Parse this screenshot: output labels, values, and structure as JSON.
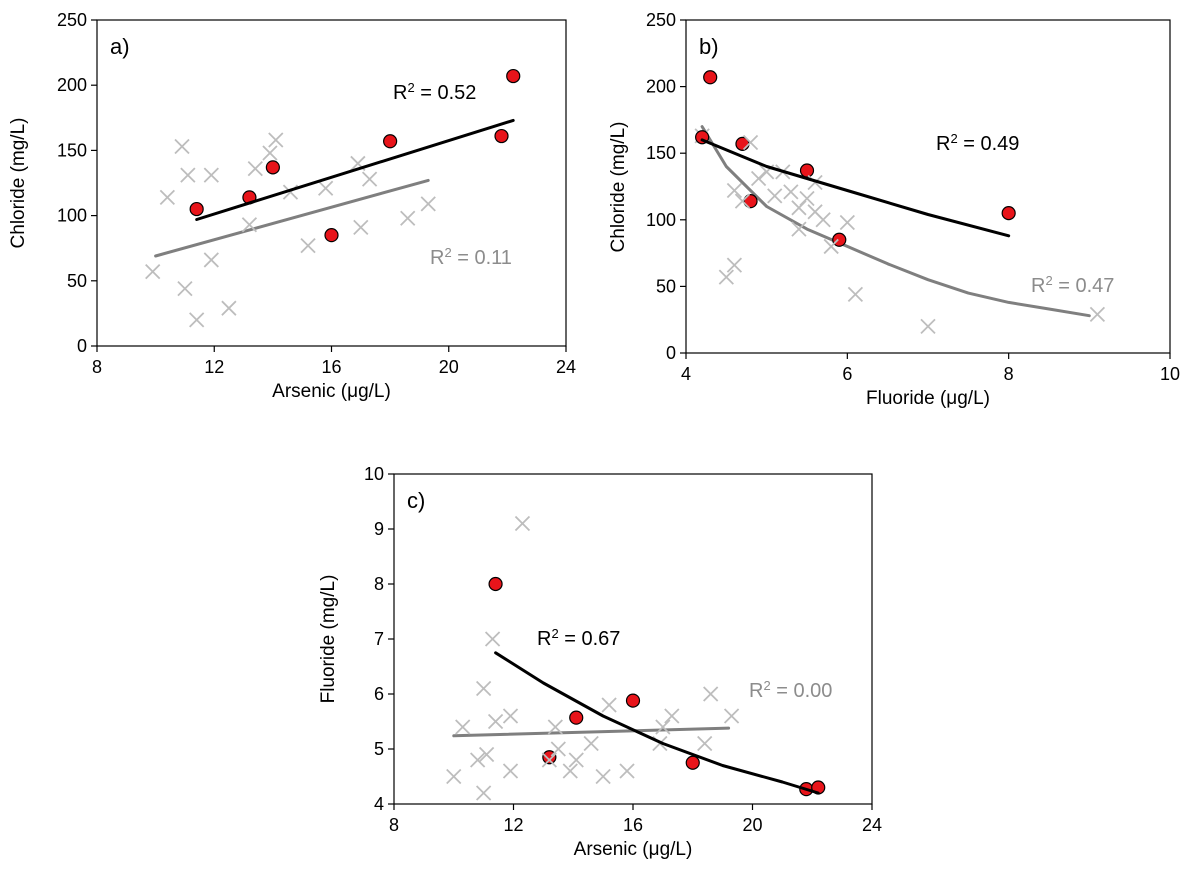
{
  "chart_data": [
    {
      "type": "scatter",
      "panel": "a)",
      "xlabel": "Arsenic (μg/L)",
      "ylabel": "Chloride (mg/L)",
      "xlim": [
        8,
        24
      ],
      "ylim": [
        0,
        250
      ],
      "xticks": [
        "8",
        "12",
        "16",
        "20",
        "24"
      ],
      "yticks": [
        "0",
        "50",
        "100",
        "150",
        "200",
        "250"
      ],
      "series": [
        {
          "marker": "cross",
          "color": "#bdbdbd",
          "points": [
            [
              9.9,
              57
            ],
            [
              10.4,
              114
            ],
            [
              10.9,
              153
            ],
            [
              11.0,
              44
            ],
            [
              11.1,
              131
            ],
            [
              11.4,
              20
            ],
            [
              11.9,
              131
            ],
            [
              11.9,
              66
            ],
            [
              12.5,
              29
            ],
            [
              13.2,
              93
            ],
            [
              13.4,
              136
            ],
            [
              13.9,
              148
            ],
            [
              14.1,
              158
            ],
            [
              14.6,
              118
            ],
            [
              15.2,
              77
            ],
            [
              15.8,
              121
            ],
            [
              16.9,
              140
            ],
            [
              17.0,
              91
            ],
            [
              17.3,
              128
            ],
            [
              18.6,
              98
            ],
            [
              19.3,
              109
            ]
          ],
          "fit": [
            [
              10.0,
              69
            ],
            [
              19.3,
              127
            ]
          ],
          "r2_label": "R",
          "r2_value": " = 0.11"
        },
        {
          "marker": "circle",
          "color": "#e8141a",
          "points": [
            [
              11.4,
              105
            ],
            [
              13.2,
              114
            ],
            [
              14.0,
              137
            ],
            [
              16.0,
              85
            ],
            [
              18.0,
              157
            ],
            [
              21.8,
              161
            ],
            [
              22.2,
              207
            ]
          ],
          "fit": [
            [
              11.4,
              97
            ],
            [
              22.2,
              173
            ]
          ],
          "r2_label": "R",
          "r2_value": " = 0.52"
        }
      ]
    },
    {
      "type": "scatter",
      "panel": "b)",
      "xlabel": "Fluoride (μg/L)",
      "ylabel": "Chloride (mg/L)",
      "xlim": [
        4,
        10
      ],
      "ylim": [
        0,
        250
      ],
      "xticks": [
        "4",
        "6",
        "8",
        "10"
      ],
      "yticks": [
        "0",
        "50",
        "100",
        "150",
        "200",
        "250"
      ],
      "series": [
        {
          "marker": "cross",
          "color": "#bdbdbd",
          "points": [
            [
              4.2,
              163
            ],
            [
              4.5,
              57
            ],
            [
              4.6,
              66
            ],
            [
              4.6,
              122
            ],
            [
              4.7,
              114
            ],
            [
              4.8,
              158
            ],
            [
              4.9,
              131
            ],
            [
              5.0,
              136
            ],
            [
              5.1,
              118
            ],
            [
              5.2,
              136
            ],
            [
              5.3,
              121
            ],
            [
              5.4,
              93
            ],
            [
              5.4,
              109
            ],
            [
              5.5,
              116
            ],
            [
              5.6,
              128
            ],
            [
              5.6,
              106
            ],
            [
              5.7,
              100
            ],
            [
              5.8,
              80
            ],
            [
              6.0,
              98
            ],
            [
              6.1,
              44
            ],
            [
              7.0,
              20
            ],
            [
              9.1,
              29
            ]
          ],
          "fit": [
            [
              4.2,
              170
            ],
            [
              4.5,
              140
            ],
            [
              5.0,
              110
            ],
            [
              5.5,
              93
            ],
            [
              6.0,
              80
            ],
            [
              6.5,
              67
            ],
            [
              7.0,
              55
            ],
            [
              7.5,
              45
            ],
            [
              8.0,
              38
            ],
            [
              8.5,
              33
            ],
            [
              9.0,
              28
            ]
          ],
          "r2_label": "R",
          "r2_value": " = 0.47"
        },
        {
          "marker": "circle",
          "color": "#e8141a",
          "points": [
            [
              4.2,
              162
            ],
            [
              4.3,
              207
            ],
            [
              4.7,
              157
            ],
            [
              4.8,
              114
            ],
            [
              5.5,
              137
            ],
            [
              5.9,
              85
            ],
            [
              8.0,
              105
            ]
          ],
          "fit": [
            [
              4.2,
              160
            ],
            [
              5.0,
              140
            ],
            [
              6.0,
              122
            ],
            [
              7.0,
              104
            ],
            [
              8.0,
              88
            ]
          ],
          "r2_label": "R",
          "r2_value": " = 0.49"
        }
      ]
    },
    {
      "type": "scatter",
      "panel": "c)",
      "xlabel": "Arsenic (μg/L)",
      "ylabel": "Fluoride (mg/L)",
      "xlim": [
        8,
        24
      ],
      "ylim": [
        4,
        10
      ],
      "xticks": [
        "8",
        "12",
        "16",
        "20",
        "24"
      ],
      "yticks": [
        "4",
        "5",
        "6",
        "7",
        "8",
        "9",
        "10"
      ],
      "series": [
        {
          "marker": "cross",
          "color": "#bdbdbd",
          "points": [
            [
              10.0,
              4.5
            ],
            [
              10.3,
              5.4
            ],
            [
              10.8,
              4.8
            ],
            [
              11.0,
              6.1
            ],
            [
              11.0,
              4.2
            ],
            [
              11.1,
              4.9
            ],
            [
              11.3,
              7.0
            ],
            [
              11.4,
              5.5
            ],
            [
              11.9,
              5.6
            ],
            [
              11.9,
              4.6
            ],
            [
              12.3,
              9.1
            ],
            [
              13.2,
              4.8
            ],
            [
              13.4,
              5.4
            ],
            [
              13.5,
              5.0
            ],
            [
              13.9,
              4.6
            ],
            [
              14.1,
              4.8
            ],
            [
              14.6,
              5.1
            ],
            [
              15.0,
              4.5
            ],
            [
              15.2,
              5.8
            ],
            [
              15.8,
              4.6
            ],
            [
              16.9,
              5.1
            ],
            [
              17.0,
              5.4
            ],
            [
              17.3,
              5.6
            ],
            [
              18.4,
              5.1
            ],
            [
              18.6,
              6.0
            ],
            [
              19.3,
              5.6
            ]
          ],
          "fit": [
            [
              10.0,
              5.24
            ],
            [
              19.2,
              5.38
            ]
          ],
          "r2_label": "R",
          "r2_value": " = 0.00"
        },
        {
          "marker": "circle",
          "color": "#e8141a",
          "points": [
            [
              11.4,
              8.0
            ],
            [
              13.2,
              4.85
            ],
            [
              14.1,
              5.57
            ],
            [
              16.0,
              5.88
            ],
            [
              18.0,
              4.75
            ],
            [
              21.8,
              4.27
            ],
            [
              22.2,
              4.3
            ]
          ],
          "fit": [
            [
              11.4,
              6.75
            ],
            [
              13,
              6.2
            ],
            [
              15,
              5.6
            ],
            [
              17,
              5.1
            ],
            [
              19,
              4.7
            ],
            [
              21,
              4.4
            ],
            [
              22.2,
              4.2
            ]
          ],
          "r2_label": "R",
          "r2_value": " = 0.67"
        }
      ]
    }
  ]
}
